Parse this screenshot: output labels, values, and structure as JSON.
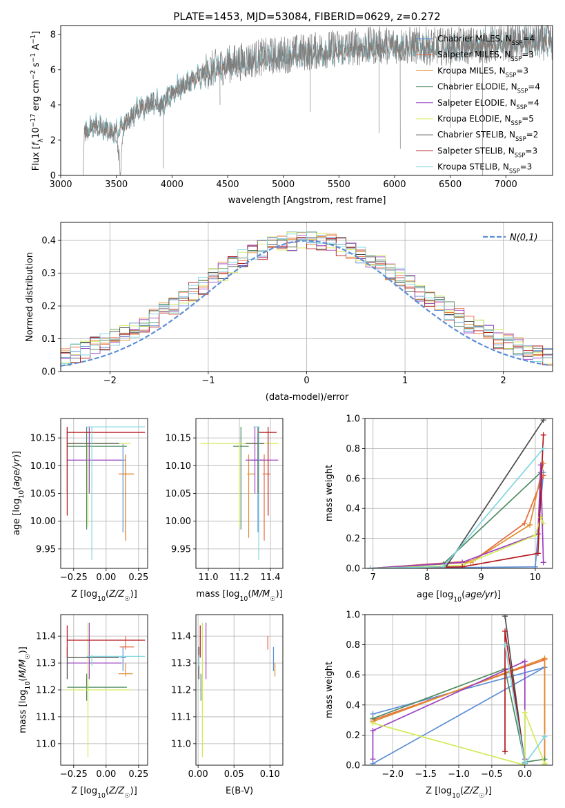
{
  "figure": {
    "title": "PLATE=1453, MJD=53084, FIBERID=0629, z=0.272"
  },
  "models": [
    {
      "name": "Chabrier MILES",
      "nssp": "4",
      "color": "#5b8ed6"
    },
    {
      "name": "Salpeter MILES",
      "nssp": "3",
      "color": "#e8683c"
    },
    {
      "name": "Kroupa MILES",
      "nssp": "3",
      "color": "#e08a2a"
    },
    {
      "name": "Chabrier ELODIE",
      "nssp": "4",
      "color": "#4f8a61"
    },
    {
      "name": "Salpeter ELODIE",
      "nssp": "4",
      "color": "#9b3fc0"
    },
    {
      "name": "Kroupa ELODIE",
      "nssp": "5",
      "color": "#d3ea5a"
    },
    {
      "name": "Chabrier STELIB",
      "nssp": "2",
      "color": "#4b4b4b"
    },
    {
      "name": "Salpeter STELIB",
      "nssp": "3",
      "color": "#b3161a"
    },
    {
      "name": "Kroupa STELIB",
      "nssp": "3",
      "color": "#7fd6e0"
    }
  ],
  "chart_data": [
    {
      "id": "spectrum",
      "type": "line",
      "title": "PLATE=1453, MJD=53084, FIBERID=0629, z=0.272",
      "xlabel": "wavelength [Angstrom, rest frame]",
      "ylabel": "Flux [f_λ 10^-17 erg cm^-2 s^-1 A^-1]",
      "xlim": [
        3000,
        7420
      ],
      "ylim": [
        0,
        8.5
      ],
      "xticks": [
        3000,
        3500,
        4000,
        4500,
        5000,
        5500,
        6000,
        6500,
        7000
      ],
      "yticks": [
        0,
        2,
        4,
        6,
        8
      ],
      "grid": false,
      "legend": "top-right",
      "data_color": "#7f7f7f",
      "data_anchors": [
        [
          3200,
          0
        ],
        [
          3210,
          2.3
        ],
        [
          3300,
          2.8
        ],
        [
          3400,
          2.6
        ],
        [
          3500,
          2.4
        ],
        [
          3540,
          0.1
        ],
        [
          3560,
          2.8
        ],
        [
          3700,
          3.8
        ],
        [
          3850,
          4.3
        ],
        [
          3900,
          3.9
        ],
        [
          4000,
          4.7
        ],
        [
          4300,
          5.9
        ],
        [
          4500,
          6.3
        ],
        [
          4800,
          6.7
        ],
        [
          5200,
          7.0
        ],
        [
          5600,
          7.3
        ],
        [
          6000,
          7.4
        ],
        [
          6400,
          7.3
        ],
        [
          6800,
          7.4
        ],
        [
          7200,
          7.6
        ],
        [
          7420,
          7.6
        ]
      ],
      "model_anchors": [
        [
          3210,
          2.3
        ],
        [
          3300,
          2.8
        ],
        [
          3400,
          2.5
        ],
        [
          3500,
          2.4
        ],
        [
          3560,
          2.8
        ],
        [
          3700,
          3.6
        ],
        [
          3850,
          4.2
        ],
        [
          3900,
          3.8
        ],
        [
          4000,
          4.6
        ],
        [
          4300,
          5.7
        ],
        [
          4500,
          6.1
        ],
        [
          4800,
          6.5
        ],
        [
          5200,
          6.8
        ],
        [
          5600,
          7.0
        ],
        [
          6000,
          7.2
        ],
        [
          6400,
          7.1
        ],
        [
          6800,
          7.3
        ],
        [
          7200,
          7.5
        ],
        [
          7420,
          7.5
        ]
      ]
    },
    {
      "id": "residuals",
      "type": "bar",
      "xlabel": "(data-model)/error",
      "ylabel": "Normed distribution",
      "xlim": [
        -2.5,
        2.5
      ],
      "ylim": [
        0,
        0.455
      ],
      "xticks": [
        -2,
        -1,
        0,
        1,
        2
      ],
      "yticks": [
        0.0,
        0.1,
        0.2,
        0.3,
        0.4
      ],
      "grid": true,
      "legend": "top-right",
      "reference_label": "N(0,1)",
      "reference_color": "#5b8ed6",
      "bin_width": 0.1
    },
    {
      "id": "age-vs-z",
      "type": "scatter",
      "xlabel": "Z [log10(Z/Z☉)]",
      "ylabel": "age [log10(age/yr)]",
      "xlim": [
        -0.35,
        0.32
      ],
      "ylim": [
        9.915,
        10.185
      ],
      "xticks": [
        -0.25,
        0.0,
        0.25
      ],
      "yticks": [
        9.95,
        10.0,
        10.05,
        10.1,
        10.15
      ],
      "grid": true
    },
    {
      "id": "age-vs-mass",
      "type": "scatter",
      "xlabel": "mass [log10(M/M☉)]",
      "ylabel": "",
      "xlim": [
        10.92,
        11.48
      ],
      "ylim": [
        9.915,
        10.185
      ],
      "xticks": [
        11.0,
        11.2,
        11.4
      ],
      "yticks": [
        9.95,
        10.0,
        10.05,
        10.1,
        10.15
      ],
      "grid": true
    },
    {
      "id": "weight-vs-age",
      "type": "line",
      "xlabel": "age [log10(age/yr)]",
      "ylabel": "mass weight",
      "xlim": [
        6.85,
        10.32
      ],
      "ylim": [
        0,
        1
      ],
      "xticks": [
        7,
        8,
        9,
        10
      ],
      "yticks": [
        0.0,
        0.2,
        0.4,
        0.6,
        0.8,
        1.0
      ],
      "grid": true
    },
    {
      "id": "mass-vs-z",
      "type": "scatter",
      "xlabel": "Z [log10(Z/Z☉)]",
      "ylabel": "mass [log10(M/M☉)]",
      "xlim": [
        -0.35,
        0.32
      ],
      "ylim": [
        10.92,
        11.48
      ],
      "xticks": [
        -0.25,
        0.0,
        0.25
      ],
      "yticks": [
        11.0,
        11.1,
        11.2,
        11.3,
        11.4
      ],
      "grid": true
    },
    {
      "id": "mass-vs-ebv",
      "type": "scatter",
      "xlabel": "E(B-V)",
      "ylabel": "",
      "xlim": [
        -0.003,
        0.118
      ],
      "ylim": [
        10.92,
        11.48
      ],
      "xticks": [
        0.0,
        0.05,
        0.1
      ],
      "yticks": [
        11.0,
        11.1,
        11.2,
        11.3,
        11.4
      ],
      "grid": true
    },
    {
      "id": "weight-vs-z",
      "type": "line",
      "xlabel": "Z [log10(Z/Z☉)]",
      "ylabel": "mass weight",
      "xlim": [
        -2.42,
        0.42
      ],
      "ylim": [
        0,
        1
      ],
      "xticks": [
        -2.0,
        -1.5,
        -1.0,
        -0.5,
        0.0
      ],
      "yticks": [
        0.0,
        0.2,
        0.4,
        0.6,
        0.8,
        1.0
      ],
      "grid": true
    }
  ],
  "estimates": [
    {
      "model": 0,
      "Z": 0.13,
      "Zerr": [
        0.11,
        0.155
      ],
      "age": 10.11,
      "ageerr": [
        9.98,
        10.14
      ],
      "mass": 11.32,
      "masserr": [
        11.27,
        11.36
      ],
      "ebv": 0.105
    },
    {
      "model": 1,
      "Z": 0.15,
      "Zerr": [
        0.105,
        0.215
      ],
      "age": 10.085,
      "ageerr": [
        9.965,
        10.12
      ],
      "mass": 11.36,
      "masserr": [
        11.35,
        11.4
      ],
      "ebv": 0.097
    },
    {
      "model": 2,
      "Z": 0.15,
      "Zerr": [
        0.095,
        0.205
      ],
      "age": 10.085,
      "ageerr": [
        9.97,
        10.12
      ],
      "mass": 11.26,
      "masserr": [
        11.25,
        11.3
      ],
      "ebv": 0.107
    },
    {
      "model": 3,
      "Z": -0.15,
      "Zerr": [
        -0.3,
        0.16
      ],
      "age": 10.135,
      "ageerr": [
        9.985,
        10.17
      ],
      "mass": 11.21,
      "masserr": [
        11.16,
        11.26
      ],
      "ebv": 0.004
    },
    {
      "model": 4,
      "Z": -0.13,
      "Zerr": [
        -0.3,
        0.12
      ],
      "age": 10.11,
      "ageerr": [
        10.05,
        10.17
      ],
      "mass": 11.3,
      "masserr": [
        11.24,
        11.45
      ],
      "ebv": 0.011
    },
    {
      "model": 5,
      "Z": -0.14,
      "Zerr": [
        -0.3,
        0.19
      ],
      "age": 10.14,
      "ageerr": [
        9.99,
        10.14
      ],
      "mass": 11.2,
      "masserr": [
        10.95,
        11.45
      ],
      "ebv": 0.006
    },
    {
      "model": 6,
      "Z": -0.3,
      "Zerr": [
        -0.3,
        0.1
      ],
      "age": 10.14,
      "ageerr": [
        10.05,
        10.17
      ],
      "mass": 11.32,
      "masserr": [
        11.24,
        11.36
      ],
      "ebv": 0.001
    },
    {
      "model": 7,
      "Z": -0.3,
      "Zerr": [
        -0.3,
        0.3
      ],
      "age": 10.16,
      "ageerr": [
        10.01,
        10.17
      ],
      "mass": 11.385,
      "masserr": [
        11.32,
        11.44
      ],
      "ebv": 0.003
    },
    {
      "model": 8,
      "Z": -0.11,
      "Zerr": [
        -0.15,
        0.3
      ],
      "age": 10.17,
      "ageerr": [
        9.93,
        10.17
      ],
      "mass": 11.325,
      "masserr": [
        11.29,
        11.33
      ],
      "ebv": 0.001
    }
  ],
  "weights_age": [
    {
      "model": 0,
      "points": [
        [
          10.15,
          0.64
        ],
        [
          10.0,
          0.01
        ],
        [
          6.95,
          0.0
        ]
      ]
    },
    {
      "model": 1,
      "points": [
        [
          10.15,
          0.62
        ],
        [
          9.8,
          0.3
        ],
        [
          8.85,
          0.05
        ],
        [
          6.95,
          0.0
        ]
      ]
    },
    {
      "model": 2,
      "points": [
        [
          10.15,
          0.7
        ],
        [
          9.9,
          0.29
        ],
        [
          8.8,
          0.04
        ],
        [
          6.95,
          0.0
        ]
      ]
    },
    {
      "model": 3,
      "points": [
        [
          10.1,
          0.64
        ],
        [
          8.3,
          0.03
        ],
        [
          6.95,
          0.0
        ]
      ]
    },
    {
      "model": 4,
      "points": [
        [
          10.15,
          0.04
        ],
        [
          10.1,
          0.69
        ],
        [
          10.05,
          0.23
        ],
        [
          8.65,
          0.04
        ],
        [
          6.95,
          0.0
        ]
      ]
    },
    {
      "model": 5,
      "points": [
        [
          10.15,
          0.3
        ],
        [
          10.1,
          0.34
        ],
        [
          10.0,
          0.22
        ],
        [
          8.65,
          0.02
        ],
        [
          6.95,
          0.0
        ]
      ]
    },
    {
      "model": 6,
      "points": [
        [
          10.15,
          0.99
        ],
        [
          8.35,
          0.01
        ],
        [
          6.95,
          0.0
        ]
      ]
    },
    {
      "model": 7,
      "points": [
        [
          10.15,
          0.89
        ],
        [
          10.05,
          0.1
        ],
        [
          8.65,
          0.01
        ],
        [
          6.95,
          0.0
        ]
      ]
    },
    {
      "model": 8,
      "points": [
        [
          10.15,
          0.8
        ],
        [
          8.3,
          0.01
        ],
        [
          6.95,
          0.0
        ]
      ]
    }
  ],
  "weights_z": [
    {
      "model": 0,
      "points": [
        [
          -2.3,
          0.34
        ],
        [
          0.3,
          0.65
        ],
        [
          -2.3,
          0.01
        ]
      ]
    },
    {
      "model": 1,
      "points": [
        [
          -2.3,
          0.3
        ],
        [
          0.3,
          0.7
        ],
        [
          0.3,
          0.0
        ]
      ]
    },
    {
      "model": 2,
      "points": [
        [
          -2.3,
          0.29
        ],
        [
          0.3,
          0.71
        ],
        [
          0.3,
          0.0
        ]
      ]
    },
    {
      "model": 3,
      "points": [
        [
          -2.3,
          0.31
        ],
        [
          -0.3,
          0.64
        ],
        [
          0.0,
          0.02
        ],
        [
          0.3,
          0.04
        ]
      ]
    },
    {
      "model": 4,
      "points": [
        [
          -2.3,
          0.04
        ],
        [
          -2.3,
          0.23
        ],
        [
          0.0,
          0.69
        ],
        [
          0.0,
          0.04
        ]
      ]
    },
    {
      "model": 5,
      "points": [
        [
          -2.3,
          0.28
        ],
        [
          0.0,
          0.0
        ],
        [
          0.0,
          0.35
        ],
        [
          0.3,
          0.01
        ]
      ]
    },
    {
      "model": 6,
      "points": [
        [
          -0.3,
          0.99
        ],
        [
          0.0,
          0.01
        ]
      ]
    },
    {
      "model": 7,
      "points": [
        [
          -0.3,
          0.09
        ],
        [
          -0.3,
          0.89
        ],
        [
          0.0,
          0.01
        ]
      ]
    },
    {
      "model": 8,
      "points": [
        [
          -0.3,
          0.8
        ],
        [
          0.0,
          0.01
        ],
        [
          0.3,
          0.19
        ]
      ]
    }
  ]
}
